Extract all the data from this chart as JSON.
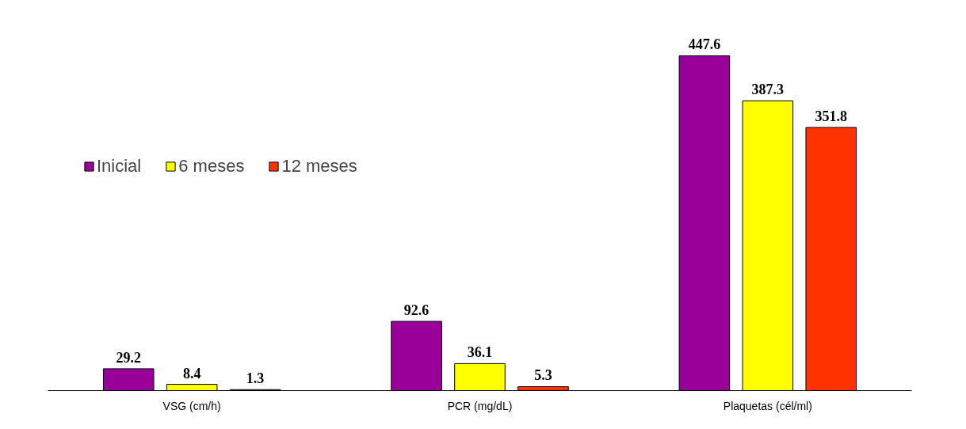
{
  "chart_data": {
    "type": "bar",
    "categories": [
      "VSG (cm/h)",
      "PCR (mg/dL)",
      "Plaquetas (cél/ml)"
    ],
    "series": [
      {
        "name": "Inicial",
        "color": "#990099",
        "values": [
          29.2,
          92.6,
          447.6
        ]
      },
      {
        "name": "6 meses",
        "color": "#ffff00",
        "values": [
          8.4,
          36.1,
          387.3
        ]
      },
      {
        "name": "12 meses",
        "color": "#ff3300",
        "values": [
          1.3,
          5.3,
          351.8
        ]
      }
    ],
    "data_labels": true,
    "legend": "top left",
    "grid": false
  }
}
